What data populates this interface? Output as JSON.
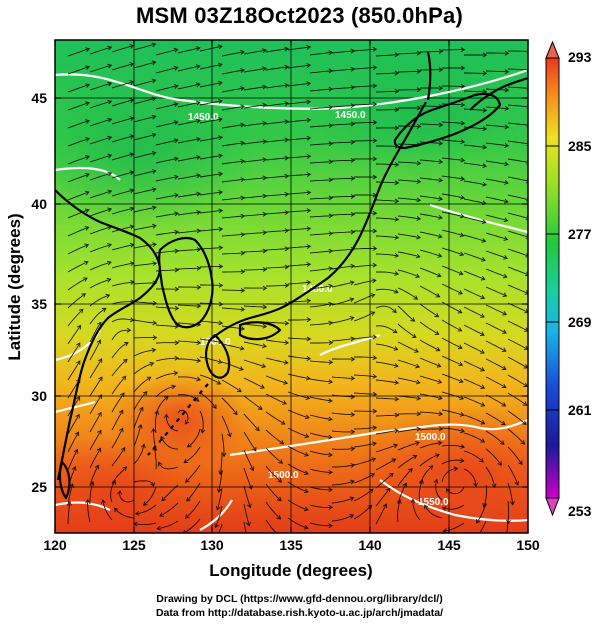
{
  "title": "MSM 03Z18Oct2023 (850.0hPa)",
  "x_axis": {
    "label": "Longitude (degrees)",
    "ticks": [
      "120",
      "125",
      "130",
      "135",
      "140",
      "145",
      "150"
    ]
  },
  "y_axis": {
    "label": "Latitude  (degrees)",
    "ticks": [
      "25",
      "30",
      "35",
      "40",
      "45"
    ]
  },
  "colorbar": {
    "labels": [
      "293",
      "285",
      "277",
      "269",
      "261",
      "253"
    ],
    "min": 253,
    "max": 293
  },
  "credits": {
    "line1": "Drawing by DCL (https://www.gfd-dennou.org/library/dcl/)",
    "line2": "Data from http://database.rish.kyoto-u.ac.jp/arch/jmadata/"
  },
  "contour_labels": [
    "1450.0",
    "1450.0",
    "1450.0",
    "1500.0",
    "1500.0",
    "1500.0",
    "1550.0"
  ],
  "colors": {
    "warm": "#e8501c",
    "mid": "#b8e62a",
    "cool": "#26c648",
    "contour": "#ffffff",
    "streamline": "#000000"
  }
}
